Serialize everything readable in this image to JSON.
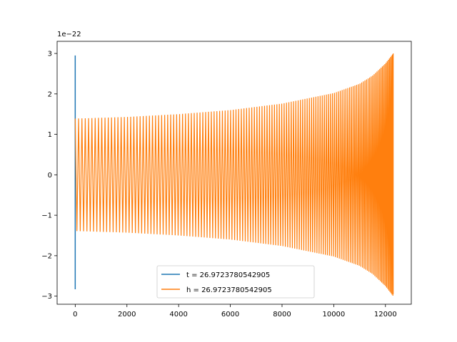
{
  "chart_data": {
    "type": "line",
    "title": "",
    "xlabel": "",
    "ylabel": "",
    "y_offset_text": "1e−22",
    "xlim": [
      -700,
      13000
    ],
    "ylim": [
      -3.2,
      3.3
    ],
    "x_ticks": [
      {
        "value": 0,
        "label": "0"
      },
      {
        "value": 2000,
        "label": "2000"
      },
      {
        "value": 4000,
        "label": "4000"
      },
      {
        "value": 6000,
        "label": "6000"
      },
      {
        "value": 8000,
        "label": "8000"
      },
      {
        "value": 10000,
        "label": "10000"
      },
      {
        "value": 12000,
        "label": "12000"
      }
    ],
    "y_ticks": [
      {
        "value": 3,
        "label": "3"
      },
      {
        "value": 2,
        "label": "2"
      },
      {
        "value": 1,
        "label": "1"
      },
      {
        "value": 0,
        "label": "0"
      },
      {
        "value": -1,
        "label": "−1"
      },
      {
        "value": -2,
        "label": "−2"
      },
      {
        "value": -3,
        "label": "−3"
      }
    ],
    "grid": false,
    "legend_position": "lower-center",
    "series": [
      {
        "name": "t = 26.9723780542905",
        "color": "#1f77b4",
        "kind": "spike",
        "x": [
          0,
          0
        ],
        "y": [
          2.95,
          -2.83
        ]
      },
      {
        "name": "h = 26.9723780542905",
        "color": "#ff7f0e",
        "kind": "chirp",
        "x_start": 0,
        "x_end": 12300,
        "envelope_x": [
          0,
          2000,
          4000,
          6000,
          8000,
          10000,
          11000,
          11500,
          12000,
          12300
        ],
        "envelope_y": [
          1.39,
          1.43,
          1.5,
          1.6,
          1.76,
          2.02,
          2.25,
          2.45,
          2.75,
          3.0
        ],
        "peaks_x": [
          0,
          12300
        ],
        "peaks_y": [
          -1.38,
          -2.95
        ]
      }
    ]
  }
}
